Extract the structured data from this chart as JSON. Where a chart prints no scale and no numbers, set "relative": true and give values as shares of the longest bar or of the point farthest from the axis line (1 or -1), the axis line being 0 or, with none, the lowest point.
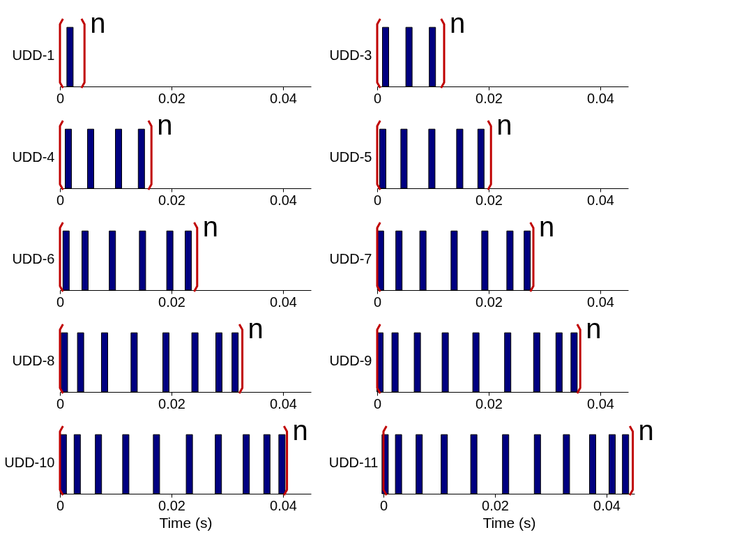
{
  "chart_data": [
    {
      "type": "bar",
      "relative": true,
      "ylabel": "UDD-1",
      "color": "#000080",
      "x": [
        0.0018
      ],
      "values": [
        1
      ],
      "xlim": [
        0,
        0.045
      ],
      "xticks": [
        0,
        0.02,
        0.04
      ],
      "grid": false,
      "ref_lines": [
        {
          "axis": "x",
          "value": 0,
          "color": "#c00000"
        },
        {
          "axis": "x",
          "value": 0.0044,
          "label": "n",
          "color": "#c00000"
        }
      ]
    },
    {
      "type": "bar",
      "relative": true,
      "ylabel": "UDD-3",
      "color": "#000080",
      "x": [
        0.0015,
        0.0057,
        0.0099
      ],
      "values": [
        1,
        1,
        1
      ],
      "xlim": [
        0,
        0.045
      ],
      "xticks": [
        0,
        0.02,
        0.04
      ],
      "grid": false,
      "ref_lines": [
        {
          "axis": "x",
          "value": 0,
          "color": "#c00000"
        },
        {
          "axis": "x",
          "value": 0.012,
          "label": "n",
          "color": "#c00000"
        }
      ]
    },
    {
      "type": "bar",
      "relative": true,
      "ylabel": "UDD-4",
      "color": "#000080",
      "x": [
        0.0015,
        0.0055,
        0.0105,
        0.0146
      ],
      "values": [
        1,
        1,
        1,
        1
      ],
      "xlim": [
        0,
        0.045
      ],
      "xticks": [
        0,
        0.02,
        0.04
      ],
      "grid": false,
      "ref_lines": [
        {
          "axis": "x",
          "value": 0,
          "color": "#c00000"
        },
        {
          "axis": "x",
          "value": 0.0164,
          "label": "n",
          "color": "#c00000"
        }
      ]
    },
    {
      "type": "bar",
      "relative": true,
      "ylabel": "UDD-5",
      "color": "#000080",
      "x": [
        0.001,
        0.0048,
        0.0098,
        0.0148,
        0.0186
      ],
      "values": [
        1,
        1,
        1,
        1,
        1
      ],
      "xlim": [
        0,
        0.045
      ],
      "xticks": [
        0,
        0.02,
        0.04
      ],
      "grid": false,
      "ref_lines": [
        {
          "axis": "x",
          "value": 0,
          "color": "#c00000"
        },
        {
          "axis": "x",
          "value": 0.0204,
          "label": "n",
          "color": "#c00000"
        }
      ]
    },
    {
      "type": "bar",
      "relative": true,
      "ylabel": "UDD-6",
      "color": "#000080",
      "x": [
        0.0011,
        0.0045,
        0.0094,
        0.0148,
        0.0197,
        0.023
      ],
      "values": [
        1,
        1,
        1,
        1,
        1,
        1
      ],
      "xlim": [
        0,
        0.045
      ],
      "xticks": [
        0,
        0.02,
        0.04
      ],
      "grid": false,
      "ref_lines": [
        {
          "axis": "x",
          "value": 0,
          "color": "#c00000"
        },
        {
          "axis": "x",
          "value": 0.0246,
          "label": "n",
          "color": "#c00000"
        }
      ]
    },
    {
      "type": "bar",
      "relative": true,
      "ylabel": "UDD-7",
      "color": "#000080",
      "x": [
        0.0006,
        0.0039,
        0.0082,
        0.0138,
        0.0193,
        0.0238,
        0.0269
      ],
      "values": [
        1,
        1,
        1,
        1,
        1,
        1,
        1
      ],
      "xlim": [
        0,
        0.045
      ],
      "xticks": [
        0,
        0.02,
        0.04
      ],
      "grid": false,
      "ref_lines": [
        {
          "axis": "x",
          "value": 0,
          "color": "#c00000"
        },
        {
          "axis": "x",
          "value": 0.028,
          "label": "n",
          "color": "#c00000"
        }
      ]
    },
    {
      "type": "bar",
      "relative": true,
      "ylabel": "UDD-8",
      "color": "#000080",
      "x": [
        0.0008,
        0.0037,
        0.008,
        0.0133,
        0.019,
        0.0242,
        0.0285,
        0.0314
      ],
      "values": [
        1,
        1,
        1,
        1,
        1,
        1,
        1,
        1
      ],
      "xlim": [
        0,
        0.045
      ],
      "xticks": [
        0,
        0.02,
        0.04
      ],
      "grid": false,
      "ref_lines": [
        {
          "axis": "x",
          "value": 0,
          "color": "#c00000"
        },
        {
          "axis": "x",
          "value": 0.0327,
          "label": "n",
          "color": "#c00000"
        }
      ]
    },
    {
      "type": "bar",
      "relative": true,
      "ylabel": "UDD-9",
      "color": "#000080",
      "x": [
        0.0005,
        0.0032,
        0.0072,
        0.0122,
        0.0177,
        0.0234,
        0.0286,
        0.0326,
        0.0353
      ],
      "values": [
        1,
        1,
        1,
        1,
        1,
        1,
        1,
        1,
        1
      ],
      "xlim": [
        0,
        0.045
      ],
      "xticks": [
        0,
        0.02,
        0.04
      ],
      "grid": false,
      "ref_lines": [
        {
          "axis": "x",
          "value": 0,
          "color": "#c00000"
        },
        {
          "axis": "x",
          "value": 0.0364,
          "label": "n",
          "color": "#c00000"
        }
      ]
    },
    {
      "type": "bar",
      "relative": true,
      "ylabel": "UDD-10",
      "xlabel": "Time (s)",
      "color": "#000080",
      "x": [
        0.0006,
        0.0031,
        0.0069,
        0.0118,
        0.0173,
        0.0232,
        0.0284,
        0.0334,
        0.0371,
        0.0398
      ],
      "values": [
        1,
        1,
        1,
        1,
        1,
        1,
        1,
        1,
        1,
        1
      ],
      "xlim": [
        0,
        0.045
      ],
      "xticks": [
        0,
        0.02,
        0.04
      ],
      "grid": false,
      "ref_lines": [
        {
          "axis": "x",
          "value": 0,
          "color": "#c00000"
        },
        {
          "axis": "x",
          "value": 0.0407,
          "label": "n",
          "color": "#c00000"
        }
      ]
    },
    {
      "type": "bar",
      "relative": true,
      "ylabel": "UDD-11",
      "xlabel": "Time (s)",
      "color": "#000080",
      "x": [
        0.0003,
        0.0027,
        0.0064,
        0.0109,
        0.0162,
        0.0219,
        0.0276,
        0.0328,
        0.0375,
        0.041,
        0.0434
      ],
      "values": [
        1,
        1,
        1,
        1,
        1,
        1,
        1,
        1,
        1,
        1,
        1
      ],
      "xlim": [
        0,
        0.045
      ],
      "xticks": [
        0,
        0.02,
        0.04
      ],
      "grid": false,
      "ref_lines": [
        {
          "axis": "x",
          "value": 0,
          "color": "#c00000"
        },
        {
          "axis": "x",
          "value": 0.0447,
          "label": "n",
          "color": "#c00000"
        }
      ]
    }
  ]
}
